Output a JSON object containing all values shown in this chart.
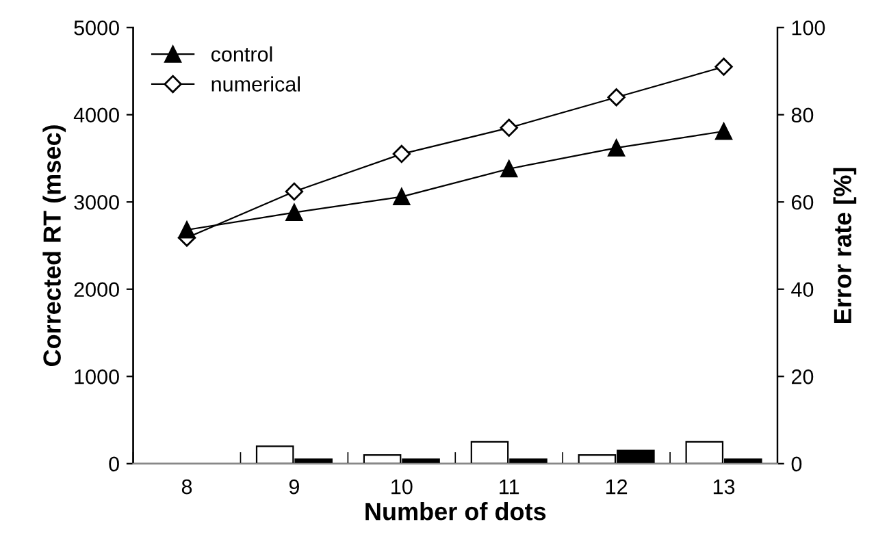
{
  "chart_data": {
    "type": "line",
    "xlabel": "Number of dots",
    "ylabel": "Corrected RT (msec)",
    "y2label": "Error rate [%]",
    "categories": [
      "8",
      "9",
      "10",
      "11",
      "12",
      "13"
    ],
    "series": [
      {
        "name": "control",
        "color": "#000000",
        "marker": "triangle",
        "values": [
          2680,
          2880,
          3060,
          3380,
          3620,
          3810
        ]
      },
      {
        "name": "numerical",
        "color": "#000000",
        "marker": "diamond",
        "values": [
          2590,
          3120,
          3550,
          3850,
          4200,
          4550
        ]
      },
      {
        "type": "bar",
        "axis": "y2",
        "color": "#ffffff",
        "values": [
          null,
          4,
          2,
          5,
          2,
          5
        ]
      },
      {
        "type": "bar",
        "axis": "y2",
        "color": "#000000",
        "values": [
          null,
          1,
          1,
          1,
          3,
          1
        ]
      }
    ],
    "ylim": [
      0,
      5000
    ],
    "yticks": [
      0,
      1000,
      2000,
      3000,
      4000,
      5000
    ],
    "y2lim": [
      0,
      100
    ],
    "y2ticks": [
      0,
      20,
      40,
      60,
      80,
      100
    ],
    "grid": false,
    "legend": "top left",
    "line_style": "solid"
  }
}
